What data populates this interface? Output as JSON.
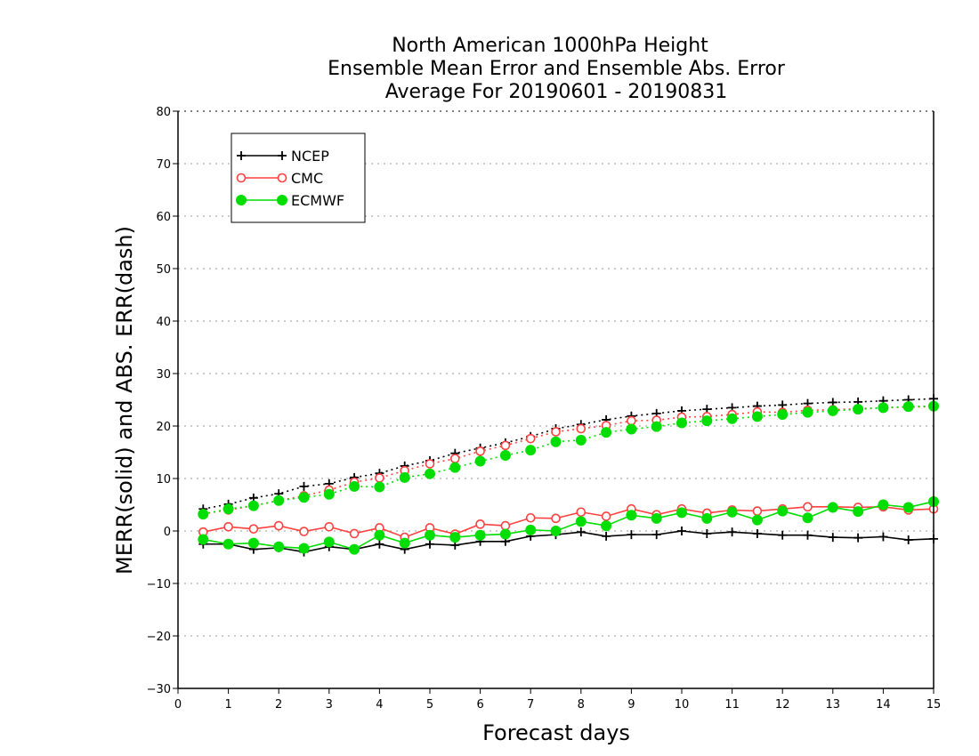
{
  "chart_data": {
    "type": "line",
    "title": [
      "North American 1000hPa Height",
      "Ensemble Mean Error and Ensemble Abs. Error",
      "Average For 20190601 - 20190831"
    ],
    "xlabel": "Forecast days",
    "ylabel": "MERR(solid) and ABS. ERR(dash)",
    "xlim": [
      0,
      15
    ],
    "ylim": [
      -30,
      80
    ],
    "xticks": [
      "0",
      "1",
      "2",
      "3",
      "4",
      "5",
      "6",
      "7",
      "8",
      "9",
      "10",
      "11",
      "12",
      "13",
      "14",
      "15"
    ],
    "yticks": [
      "80",
      "70",
      "60",
      "50",
      "40",
      "30",
      "20",
      "10",
      "0",
      "−10",
      "−20",
      "−30"
    ],
    "grid": "dotted horizontal",
    "legend_position": "top-left",
    "x": [
      0.5,
      1,
      1.5,
      2,
      2.5,
      3,
      3.5,
      4,
      4.5,
      5,
      5.5,
      6,
      6.5,
      7,
      7.5,
      8,
      8.5,
      9,
      9.5,
      10,
      10.5,
      11,
      11.5,
      12,
      12.5,
      13,
      13.5,
      14,
      14.5,
      15
    ],
    "series": [
      {
        "name": "NCEP",
        "color": "#000000",
        "marker": "plus",
        "merr": [
          -2.5,
          -2.5,
          -3.5,
          -3.2,
          -4,
          -3,
          -3.5,
          -2.5,
          -3.5,
          -2.5,
          -2.7,
          -2,
          -2,
          -1,
          -0.7,
          -0.2,
          -1,
          -0.7,
          -0.7,
          0,
          -0.5,
          -0.2,
          -0.5,
          -0.8,
          -0.8,
          -1.2,
          -1.3,
          -1.1,
          -1.7,
          -1.5
        ],
        "abserr": [
          4.2,
          5.1,
          6.3,
          7.1,
          8.5,
          9,
          10.2,
          11,
          12.4,
          13.4,
          14.8,
          15.8,
          16.8,
          18,
          19.5,
          20.3,
          21.2,
          21.9,
          22.4,
          22.9,
          23.2,
          23.5,
          23.8,
          24,
          24.3,
          24.5,
          24.6,
          24.8,
          25,
          25.2
        ]
      },
      {
        "name": "CMC",
        "color": "#ff4040",
        "marker": "open-circle",
        "merr": [
          -0.2,
          0.8,
          0.4,
          1,
          -0.1,
          0.8,
          -0.5,
          0.6,
          -1.2,
          0.6,
          -0.6,
          1.3,
          1,
          2.5,
          2.4,
          3.6,
          2.8,
          4.2,
          3.1,
          4.2,
          3.4,
          4,
          3.8,
          4.2,
          4.6,
          4.6,
          4.5,
          4.6,
          4,
          4.2
        ],
        "abserr": [
          3.3,
          4,
          4.8,
          5.8,
          6.7,
          7.8,
          9.3,
          10.1,
          11.5,
          12.8,
          13.8,
          15.2,
          16.3,
          17.6,
          18.9,
          19.5,
          20.1,
          21,
          21.1,
          21.7,
          21.8,
          22.2,
          22.7,
          22.6,
          23,
          23.1,
          23.3,
          23.5,
          23.6,
          23.7
        ]
      },
      {
        "name": "ECMWF",
        "color": "#00dd00",
        "marker": "filled-circle",
        "merr": [
          -1.6,
          -2.5,
          -2.3,
          -3,
          -3.3,
          -2.1,
          -3.5,
          -0.8,
          -2.3,
          -0.8,
          -1.2,
          -0.8,
          -0.6,
          0.2,
          0,
          1.8,
          1,
          3,
          2.4,
          3.5,
          2.4,
          3.6,
          2.1,
          3.8,
          2.5,
          4.5,
          3.7,
          5,
          4.5,
          5.6
        ],
        "abserr": [
          3.2,
          4.2,
          4.8,
          5.8,
          6.4,
          7,
          8.5,
          8.4,
          10.2,
          10.9,
          12.1,
          13.3,
          14.4,
          15.4,
          17,
          17.3,
          18.8,
          19.4,
          19.9,
          20.6,
          21,
          21.4,
          21.8,
          22.2,
          22.6,
          22.9,
          23.2,
          23.5,
          23.7,
          23.8
        ]
      }
    ]
  }
}
